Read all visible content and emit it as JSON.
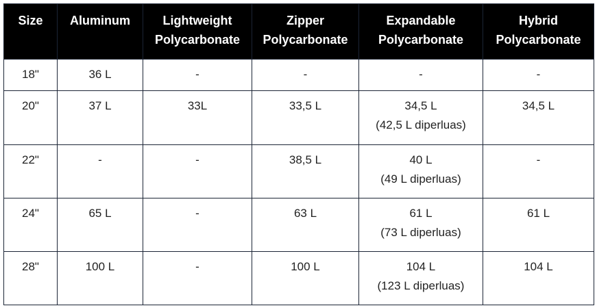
{
  "table": {
    "header": [
      [
        "Size"
      ],
      [
        "Aluminum"
      ],
      [
        "Lightweight",
        "Polycarbonate"
      ],
      [
        "Zipper",
        "Polycarbonate"
      ],
      [
        "Expandable",
        "Polycarbonate"
      ],
      [
        "Hybrid",
        "Polycarbonate"
      ]
    ],
    "rows": [
      [
        [
          "18\""
        ],
        [
          "36 L"
        ],
        [
          "-"
        ],
        [
          "-"
        ],
        [
          "-"
        ],
        [
          "-"
        ]
      ],
      [
        [
          "20\""
        ],
        [
          "37 L"
        ],
        [
          "33L"
        ],
        [
          "33,5 L"
        ],
        [
          "34,5 L",
          "(42,5 L diperluas)"
        ],
        [
          "34,5 L"
        ]
      ],
      [
        [
          "22\""
        ],
        [
          "-"
        ],
        [
          "-"
        ],
        [
          "38,5 L"
        ],
        [
          "40 L",
          "(49 L diperluas)"
        ],
        [
          "-"
        ]
      ],
      [
        [
          "24\""
        ],
        [
          "65 L"
        ],
        [
          "-"
        ],
        [
          "63 L"
        ],
        [
          "61 L",
          "(73 L diperluas)"
        ],
        [
          "61 L"
        ]
      ],
      [
        [
          "28\""
        ],
        [
          "100 L"
        ],
        [
          "-"
        ],
        [
          "100 L"
        ],
        [
          "104 L",
          "(123 L diperluas)"
        ],
        [
          "104 L"
        ]
      ]
    ]
  }
}
